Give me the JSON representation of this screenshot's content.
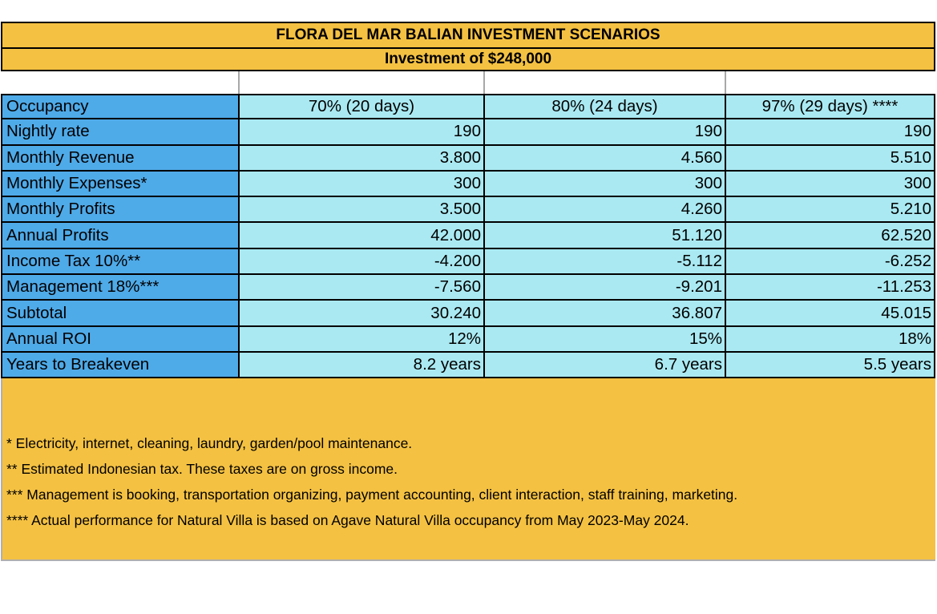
{
  "title": "FLORA DEL MAR BALIAN INVESTMENT SCENARIOS",
  "subtitle": "Investment of $248,000",
  "colors": {
    "banner": "#F4C142",
    "label_cells": "#4FAAE8",
    "value_cells": "#AAE9F2"
  },
  "table": {
    "header": {
      "label": "Occupancy",
      "scenarios": [
        "70% (20 days)",
        "80% (24 days)",
        "97% (29 days) ****"
      ]
    },
    "rows": [
      {
        "label": "Nightly rate",
        "values": [
          "190",
          "190",
          "190"
        ]
      },
      {
        "label": "Monthly Revenue",
        "values": [
          "3.800",
          "4.560",
          "5.510"
        ]
      },
      {
        "label": "Monthly Expenses*",
        "values": [
          "300",
          "300",
          "300"
        ]
      },
      {
        "label": "Monthly Profits",
        "values": [
          "3.500",
          "4.260",
          "5.210"
        ]
      },
      {
        "label": "Annual Profits",
        "values": [
          "42.000",
          "51.120",
          "62.520"
        ]
      },
      {
        "label": "Income Tax 10%**",
        "values": [
          "-4.200",
          "-5.112",
          "-6.252"
        ]
      },
      {
        "label": "Management 18%***",
        "values": [
          "-7.560",
          "-9.201",
          "-11.253"
        ]
      },
      {
        "label": "Subtotal",
        "values": [
          "30.240",
          "36.807",
          "45.015"
        ]
      },
      {
        "label": "Annual ROI",
        "values": [
          "12%",
          "15%",
          "18%"
        ]
      },
      {
        "label": "Years to Breakeven",
        "values": [
          "8.2 years",
          "6.7 years",
          "5.5 years"
        ]
      }
    ]
  },
  "notes": [
    "* Electricity, internet, cleaning, laundry, garden/pool maintenance.",
    "** Estimated Indonesian tax. These taxes are on gross income.",
    "*** Management is booking, transportation organizing, payment accounting, client interaction, staff training, marketing.",
    "**** Actual performance for Natural Villa is based on Agave Natural Villa occupancy from May 2023-May 2024."
  ]
}
